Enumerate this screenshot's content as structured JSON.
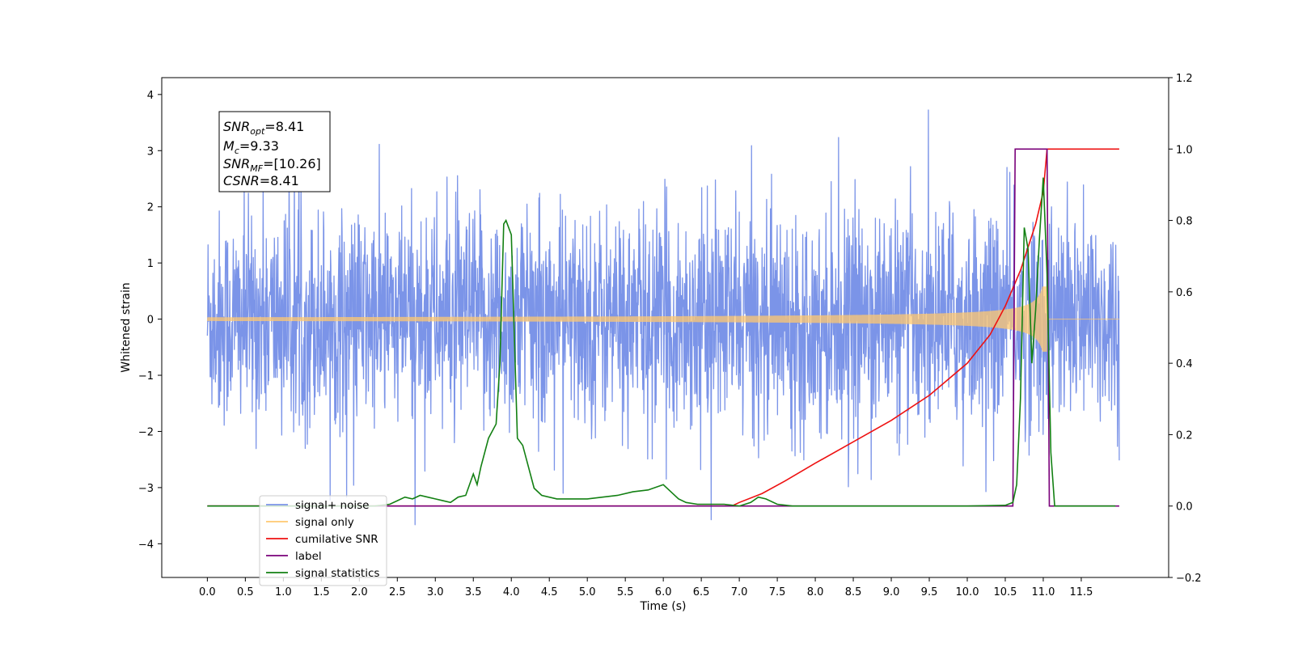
{
  "chart_data": {
    "type": "line",
    "xlabel": "Time (s)",
    "ylabel": "Whitened strain",
    "xlim": [
      -0.6,
      12.65
    ],
    "ylim": [
      -4.6,
      4.3
    ],
    "y2lim": [
      -0.2,
      1.2
    ],
    "x_ticks": [
      "0.0",
      "0.5",
      "1.0",
      "1.5",
      "2.0",
      "2.5",
      "3.0",
      "3.5",
      "4.0",
      "4.5",
      "5.0",
      "5.5",
      "6.0",
      "6.5",
      "7.0",
      "7.5",
      "8.0",
      "8.5",
      "9.0",
      "9.5",
      "10.0",
      "10.5",
      "11.0",
      "11.5"
    ],
    "y_ticks": [
      "4",
      "3",
      "2",
      "1",
      "0",
      "−1",
      "−2",
      "−3",
      "−4"
    ],
    "y2_ticks": [
      "1.2",
      "1.0",
      "0.8",
      "0.6",
      "0.4",
      "0.2",
      "0.0",
      "−0.2"
    ],
    "annotation": {
      "snr_opt": {
        "symbol": "SNR",
        "sub": "opt",
        "value": "=8.41"
      },
      "mc": {
        "symbol": "M",
        "sub": "c",
        "value": "=9.33"
      },
      "snr_mf": {
        "symbol": "SNR",
        "sub": "MF",
        "value": "=[10.26]"
      },
      "csnr": {
        "symbol": "CSNR",
        "value": "=8.41"
      }
    },
    "legend_placement": "lower-left",
    "series": [
      {
        "name": "signal+ noise",
        "color": "#7b94e8",
        "axis": "left",
        "x_range": [
          0.0,
          12.0
        ],
        "amplitude_std": 0.95,
        "y_min": -4.1,
        "y_max": 3.92
      },
      {
        "name": "signal only",
        "color": "#ffc870",
        "axis": "left",
        "x_range": [
          0.0,
          12.0
        ],
        "chirp_end": 11.05,
        "peak_amplitude": 0.58
      },
      {
        "name": "cumilative SNR",
        "color": "#ee1111",
        "axis": "right",
        "x": [
          0.0,
          6.9,
          7.0,
          7.3,
          7.6,
          8.0,
          8.5,
          9.0,
          9.5,
          10.0,
          10.3,
          10.5,
          10.7,
          10.9,
          11.0,
          11.05,
          11.1,
          12.0
        ],
        "y": [
          0.0,
          0.0,
          0.01,
          0.035,
          0.07,
          0.12,
          0.18,
          0.24,
          0.31,
          0.4,
          0.48,
          0.56,
          0.66,
          0.79,
          0.88,
          1.0,
          1.0,
          1.0
        ]
      },
      {
        "name": "label",
        "color": "#7a007a",
        "axis": "right",
        "x": [
          0.0,
          10.6,
          10.63,
          11.05,
          11.08,
          12.0
        ],
        "y": [
          0.0,
          0.0,
          1.0,
          1.0,
          0.0,
          0.0
        ]
      },
      {
        "name": "signal statistics",
        "color": "#138013",
        "axis": "right",
        "x": [
          0.0,
          2.2,
          2.4,
          2.5,
          2.6,
          2.7,
          2.8,
          2.9,
          3.0,
          3.1,
          3.2,
          3.3,
          3.4,
          3.5,
          3.55,
          3.6,
          3.65,
          3.7,
          3.75,
          3.8,
          3.85,
          3.9,
          3.93,
          4.0,
          4.08,
          4.15,
          4.2,
          4.3,
          4.4,
          4.6,
          4.8,
          5.0,
          5.2,
          5.4,
          5.6,
          5.8,
          6.0,
          6.1,
          6.2,
          6.3,
          6.45,
          6.6,
          6.8,
          7.0,
          7.15,
          7.25,
          7.35,
          7.5,
          7.7,
          8.0,
          9.0,
          10.0,
          10.5,
          10.6,
          10.65,
          10.7,
          10.75,
          10.8,
          10.85,
          10.9,
          10.95,
          11.0,
          11.05,
          11.1,
          11.15,
          11.2,
          11.5,
          11.95
        ],
        "y": [
          0.0,
          0.0,
          0.005,
          0.015,
          0.025,
          0.02,
          0.03,
          0.025,
          0.02,
          0.015,
          0.01,
          0.025,
          0.03,
          0.09,
          0.06,
          0.11,
          0.15,
          0.19,
          0.21,
          0.23,
          0.4,
          0.79,
          0.8,
          0.76,
          0.19,
          0.17,
          0.13,
          0.05,
          0.03,
          0.02,
          0.02,
          0.02,
          0.025,
          0.03,
          0.04,
          0.045,
          0.06,
          0.04,
          0.02,
          0.01,
          0.005,
          0.005,
          0.005,
          0.0,
          0.01,
          0.025,
          0.02,
          0.005,
          0.0,
          0.0,
          0.0,
          0.0,
          0.002,
          0.01,
          0.06,
          0.3,
          0.78,
          0.72,
          0.4,
          0.55,
          0.75,
          0.92,
          0.65,
          0.15,
          0.0,
          0.0,
          0.0,
          0.0
        ]
      }
    ]
  }
}
